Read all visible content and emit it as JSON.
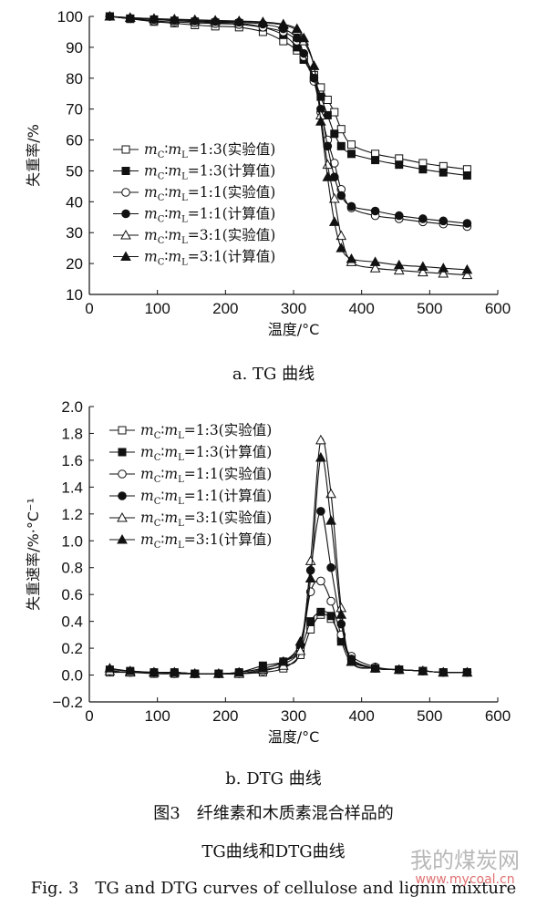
{
  "chart_data": [
    {
      "type": "line",
      "subtitle": "a. TG 曲线",
      "xlabel": "温度/°C",
      "ylabel": "失重率/%",
      "xlim": [
        0,
        600
      ],
      "ylim": [
        10,
        100
      ],
      "xticks": [
        0,
        100,
        200,
        300,
        400,
        500,
        600
      ],
      "yticks": [
        10,
        20,
        30,
        40,
        50,
        60,
        70,
        80,
        90,
        100
      ],
      "legend_position": "left-middle",
      "series": [
        {
          "name": "1:3(实验值)",
          "marker": "square-open",
          "x": [
            30,
            60,
            95,
            125,
            155,
            185,
            220,
            255,
            285,
            305,
            315,
            330,
            340,
            350,
            360,
            370,
            385,
            420,
            455,
            490,
            520,
            555
          ],
          "y": [
            100,
            99.2,
            98.3,
            97.8,
            97.2,
            96.8,
            96.5,
            95,
            92,
            89,
            86,
            81,
            77,
            73,
            69,
            63.5,
            58.5,
            55.5,
            54,
            52.5,
            51.5,
            50.5
          ]
        },
        {
          "name": "1:3(计算值)",
          "marker": "square-filled",
          "x": [
            30,
            60,
            95,
            125,
            155,
            185,
            220,
            255,
            285,
            305,
            315,
            330,
            340,
            350,
            360,
            370,
            385,
            420,
            455,
            490,
            520,
            555
          ],
          "y": [
            100,
            99.3,
            99,
            98.6,
            98.3,
            98,
            97.8,
            96.5,
            94,
            90,
            86,
            80,
            74,
            68,
            62,
            58,
            55.5,
            53.5,
            52,
            50.5,
            49.5,
            48.5
          ]
        },
        {
          "name": "1:1(实验值)",
          "marker": "circle-open",
          "x": [
            30,
            60,
            95,
            125,
            155,
            185,
            220,
            255,
            285,
            305,
            315,
            330,
            340,
            350,
            360,
            370,
            385,
            420,
            455,
            490,
            520,
            555
          ],
          "y": [
            100,
            99.3,
            98.5,
            98.2,
            97.9,
            97.7,
            97.4,
            96.5,
            95,
            92,
            87,
            79,
            69,
            60,
            52.5,
            44,
            38,
            35.5,
            34.5,
            33.5,
            32.8,
            32
          ]
        },
        {
          "name": "1:1(计算值)",
          "marker": "circle-filled",
          "x": [
            30,
            60,
            95,
            125,
            155,
            185,
            220,
            255,
            285,
            305,
            315,
            330,
            340,
            350,
            360,
            370,
            385,
            420,
            455,
            490,
            520,
            555
          ],
          "y": [
            100,
            99.3,
            99,
            98.7,
            98.5,
            98.3,
            98.1,
            97.5,
            96,
            93,
            88,
            80,
            70,
            58,
            48,
            42,
            38.5,
            37,
            35.5,
            34.5,
            33.8,
            33
          ]
        },
        {
          "name": "3:1(实验值)",
          "marker": "triangle-open",
          "x": [
            30,
            60,
            95,
            125,
            155,
            185,
            220,
            255,
            285,
            305,
            315,
            330,
            340,
            350,
            360,
            370,
            385,
            420,
            455,
            490,
            520,
            555
          ],
          "y": [
            100,
            99.6,
            99.2,
            99,
            98.8,
            98.6,
            98.4,
            98,
            97.2,
            95.5,
            92,
            84,
            68,
            52,
            41,
            29,
            20.5,
            18.5,
            17.8,
            17.2,
            16.8,
            16.3
          ]
        },
        {
          "name": "3:1(计算值)",
          "marker": "triangle-filled",
          "x": [
            30,
            60,
            95,
            125,
            155,
            185,
            220,
            255,
            285,
            305,
            315,
            330,
            340,
            350,
            360,
            370,
            385,
            420,
            455,
            490,
            520,
            555
          ],
          "y": [
            100,
            99.6,
            99.3,
            99.1,
            98.9,
            98.7,
            98.5,
            98.2,
            97.5,
            96,
            93,
            84,
            66,
            48,
            33.5,
            25,
            21.5,
            20.5,
            19.5,
            19,
            18.5,
            18
          ]
        }
      ]
    },
    {
      "type": "line",
      "subtitle": "b. DTG 曲线",
      "xlabel": "温度/°C",
      "ylabel": "失重速率/%·°C⁻¹",
      "xlim": [
        0,
        600
      ],
      "ylim": [
        -0.2,
        2.0
      ],
      "xticks": [
        0,
        100,
        200,
        300,
        400,
        500,
        600
      ],
      "yticks": [
        "−0.2",
        "0.0",
        "0.2",
        "0.4",
        "0.6",
        "0.8",
        "1.0",
        "1.2",
        "1.4",
        "1.6",
        "1.8",
        "2.0"
      ],
      "legend_position": "top-left",
      "series": [
        {
          "name": "1:3(实验值)",
          "marker": "square-open",
          "x": [
            30,
            60,
            95,
            125,
            155,
            190,
            220,
            255,
            285,
            310,
            325,
            340,
            355,
            370,
            385,
            420,
            455,
            490,
            520,
            555
          ],
          "y": [
            0.02,
            0.02,
            0.01,
            0.01,
            0.01,
            0.01,
            0.01,
            0.02,
            0.05,
            0.15,
            0.34,
            0.45,
            0.42,
            0.28,
            0.12,
            0.05,
            0.04,
            0.03,
            0.02,
            0.02
          ]
        },
        {
          "name": "1:3(计算值)",
          "marker": "square-filled",
          "x": [
            30,
            60,
            95,
            125,
            155,
            190,
            220,
            255,
            285,
            310,
            325,
            340,
            355,
            370,
            385,
            420,
            455,
            490,
            520,
            555
          ],
          "y": [
            0.04,
            0.03,
            0.02,
            0.02,
            0.01,
            0.01,
            0.02,
            0.07,
            0.1,
            0.2,
            0.4,
            0.47,
            0.44,
            0.25,
            0.1,
            0.05,
            0.04,
            0.03,
            0.02,
            0.02
          ]
        },
        {
          "name": "1:1(实验值)",
          "marker": "circle-open",
          "x": [
            30,
            60,
            95,
            125,
            155,
            190,
            220,
            255,
            285,
            310,
            325,
            340,
            355,
            370,
            385,
            420,
            455,
            490,
            520,
            555
          ],
          "y": [
            0.03,
            0.02,
            0.02,
            0.01,
            0.01,
            0.01,
            0.01,
            0.03,
            0.08,
            0.2,
            0.62,
            0.7,
            0.55,
            0.3,
            0.14,
            0.06,
            0.04,
            0.03,
            0.02,
            0.02
          ]
        },
        {
          "name": "1:1(计算值)",
          "marker": "circle-filled",
          "x": [
            30,
            60,
            95,
            125,
            155,
            190,
            220,
            255,
            285,
            310,
            325,
            340,
            355,
            370,
            385,
            420,
            455,
            490,
            520,
            555
          ],
          "y": [
            0.03,
            0.02,
            0.02,
            0.02,
            0.01,
            0.01,
            0.02,
            0.05,
            0.1,
            0.22,
            0.78,
            1.22,
            0.8,
            0.38,
            0.12,
            0.05,
            0.04,
            0.03,
            0.02,
            0.02
          ]
        },
        {
          "name": "3:1(实验值)",
          "marker": "triangle-open",
          "x": [
            30,
            60,
            95,
            125,
            155,
            190,
            220,
            255,
            285,
            310,
            325,
            340,
            355,
            370,
            385,
            420,
            455,
            490,
            520,
            555
          ],
          "y": [
            0.03,
            0.02,
            0.02,
            0.02,
            0.01,
            0.01,
            0.01,
            0.04,
            0.07,
            0.18,
            0.85,
            1.75,
            1.35,
            0.5,
            0.1,
            0.05,
            0.04,
            0.03,
            0.02,
            0.02
          ]
        },
        {
          "name": "3:1(计算值)",
          "marker": "triangle-filled",
          "x": [
            30,
            60,
            95,
            125,
            155,
            190,
            220,
            255,
            285,
            310,
            325,
            340,
            355,
            370,
            385,
            420,
            455,
            490,
            520,
            555
          ],
          "y": [
            0.05,
            0.03,
            0.02,
            0.02,
            0.01,
            0.01,
            0.02,
            0.05,
            0.1,
            0.25,
            0.72,
            1.62,
            1.15,
            0.45,
            0.1,
            0.05,
            0.04,
            0.03,
            0.02,
            0.02
          ]
        }
      ]
    }
  ],
  "legend_prefix": {
    "mC": "m",
    "subC": "C",
    "colon": "∶",
    "mL": "m",
    "subL": "L",
    "eq": "="
  },
  "caption": {
    "cn_line1": "图3　纤维素和木质素混合样品的",
    "cn_line2": "TG曲线和DTG曲线",
    "en": "Fig. 3　TG and DTG curves of cellulose and lignin mixture"
  },
  "watermark": {
    "text": "我的煤炭网",
    "url": "www.mycoal.cn"
  }
}
